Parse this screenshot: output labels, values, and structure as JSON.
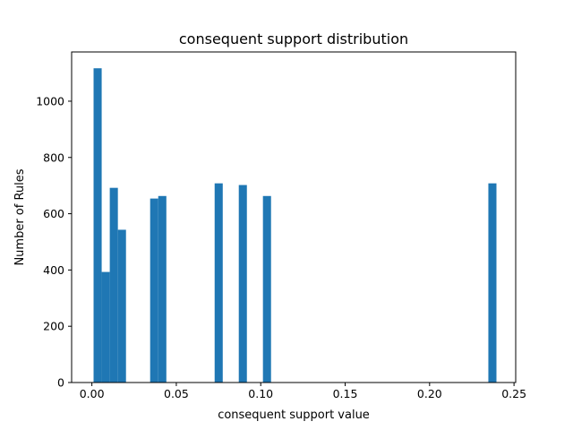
{
  "chart_data": {
    "type": "bar",
    "title": "consequent support distribution",
    "xlabel": "consequent support value",
    "ylabel": "Number of Rules",
    "xlim": [
      -0.012,
      0.251
    ],
    "ylim": [
      0,
      1175
    ],
    "bin_width": 0.0048,
    "bar_color": "#1f77b4",
    "grid": false,
    "legend": "none",
    "x_ticks": [
      {
        "value": 0.0,
        "label": "0.00"
      },
      {
        "value": 0.05,
        "label": "0.05"
      },
      {
        "value": 0.1,
        "label": "0.10"
      },
      {
        "value": 0.15,
        "label": "0.15"
      },
      {
        "value": 0.2,
        "label": "0.20"
      },
      {
        "value": 0.25,
        "label": "0.25"
      }
    ],
    "y_ticks": [
      {
        "value": 0,
        "label": "0"
      },
      {
        "value": 200,
        "label": "200"
      },
      {
        "value": 400,
        "label": "400"
      },
      {
        "value": 600,
        "label": "600"
      },
      {
        "value": 800,
        "label": "800"
      },
      {
        "value": 1000,
        "label": "1000"
      }
    ],
    "bars": [
      {
        "x_start": 0.001,
        "count": 1117
      },
      {
        "x_start": 0.0058,
        "count": 393
      },
      {
        "x_start": 0.0106,
        "count": 692
      },
      {
        "x_start": 0.0154,
        "count": 543
      },
      {
        "x_start": 0.0345,
        "count": 654
      },
      {
        "x_start": 0.0393,
        "count": 663
      },
      {
        "x_start": 0.0727,
        "count": 708
      },
      {
        "x_start": 0.087,
        "count": 702
      },
      {
        "x_start": 0.1013,
        "count": 663
      },
      {
        "x_start": 0.2348,
        "count": 708
      }
    ]
  }
}
